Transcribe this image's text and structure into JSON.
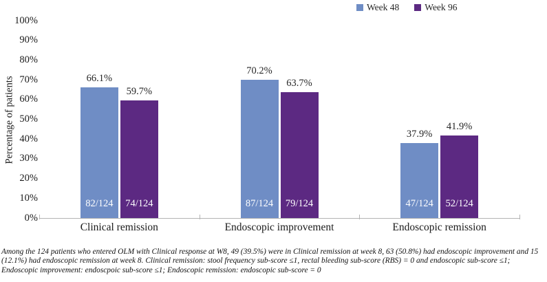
{
  "chart_data": {
    "type": "bar",
    "title": "",
    "xlabel": "",
    "ylabel": "Percentage of patients",
    "ylim": [
      0,
      100
    ],
    "ytick_step": 10,
    "ytick_suffix": "%",
    "grid": false,
    "legend_position": "top-right",
    "categories": [
      "Clinical remission",
      "Endoscopic improvement",
      "Endoscopic remission"
    ],
    "series": [
      {
        "name": "Week 48",
        "color": "#6f8dc5",
        "values": [
          66.1,
          70.2,
          37.9
        ],
        "value_labels": [
          "66.1%",
          "70.2%",
          "37.9%"
        ],
        "bar_labels": [
          "82/124",
          "87/124",
          "47/124"
        ]
      },
      {
        "name": "Week 96",
        "color": "#5c2982",
        "values": [
          59.7,
          63.7,
          41.9
        ],
        "value_labels": [
          "59.7%",
          "63.7%",
          "41.9%"
        ],
        "bar_labels": [
          "74/124",
          "79/124",
          "52/124"
        ]
      }
    ]
  },
  "footnote": {
    "lines": [
      "Among the 124 patients who entered OLM with Clinical response at W8, 49 (39.5%) were in Clinical remission at week 8, 63 (50.8%) had endoscopic improvement and 15",
      "(12.1%) had endoscopic remission at week 8. Clinical remission: stool frequency sub-score ≤1, rectal bleeding sub-score (RBS) = 0 and endoscopic sub-score ≤1;",
      "Endoscopic improvement: endoscpoic sub-score ≤1; Endoscopic remission: endoscopic sub-score = 0"
    ]
  }
}
